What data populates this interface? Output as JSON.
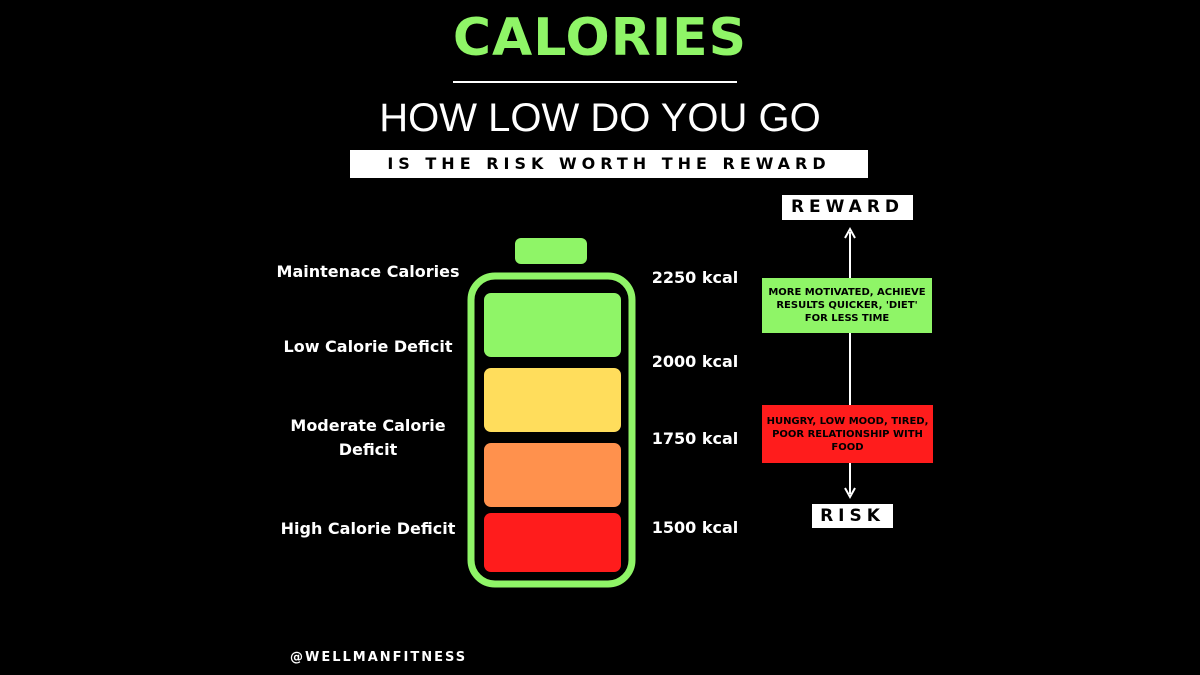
{
  "header": {
    "title": "CALORIES",
    "subtitle": "HOW LOW DO YOU GO",
    "banner": "IS THE RISK WORTH THE REWARD"
  },
  "levels": [
    {
      "label": "Maintenace Calories",
      "kcal": "2250 kcal"
    },
    {
      "label": "Low Calorie Deficit",
      "kcal": "2000 kcal"
    },
    {
      "label": "Moderate Calorie Deficit",
      "kcal": "1750 kcal"
    },
    {
      "label": "High Calorie Deficit",
      "kcal": "1500 kcal"
    }
  ],
  "scale": {
    "top": "REWARD",
    "bottom": "RISK",
    "reward_note": "MORE MOTIVATED, ACHIEVE RESULTS QUICKER, 'DIET' FOR LESS TIME",
    "risk_note": "HUNGRY, LOW MOOD, TIRED, POOR RELATIONSHIP WITH FOOD"
  },
  "footer": "@WELLMANFITNESS"
}
